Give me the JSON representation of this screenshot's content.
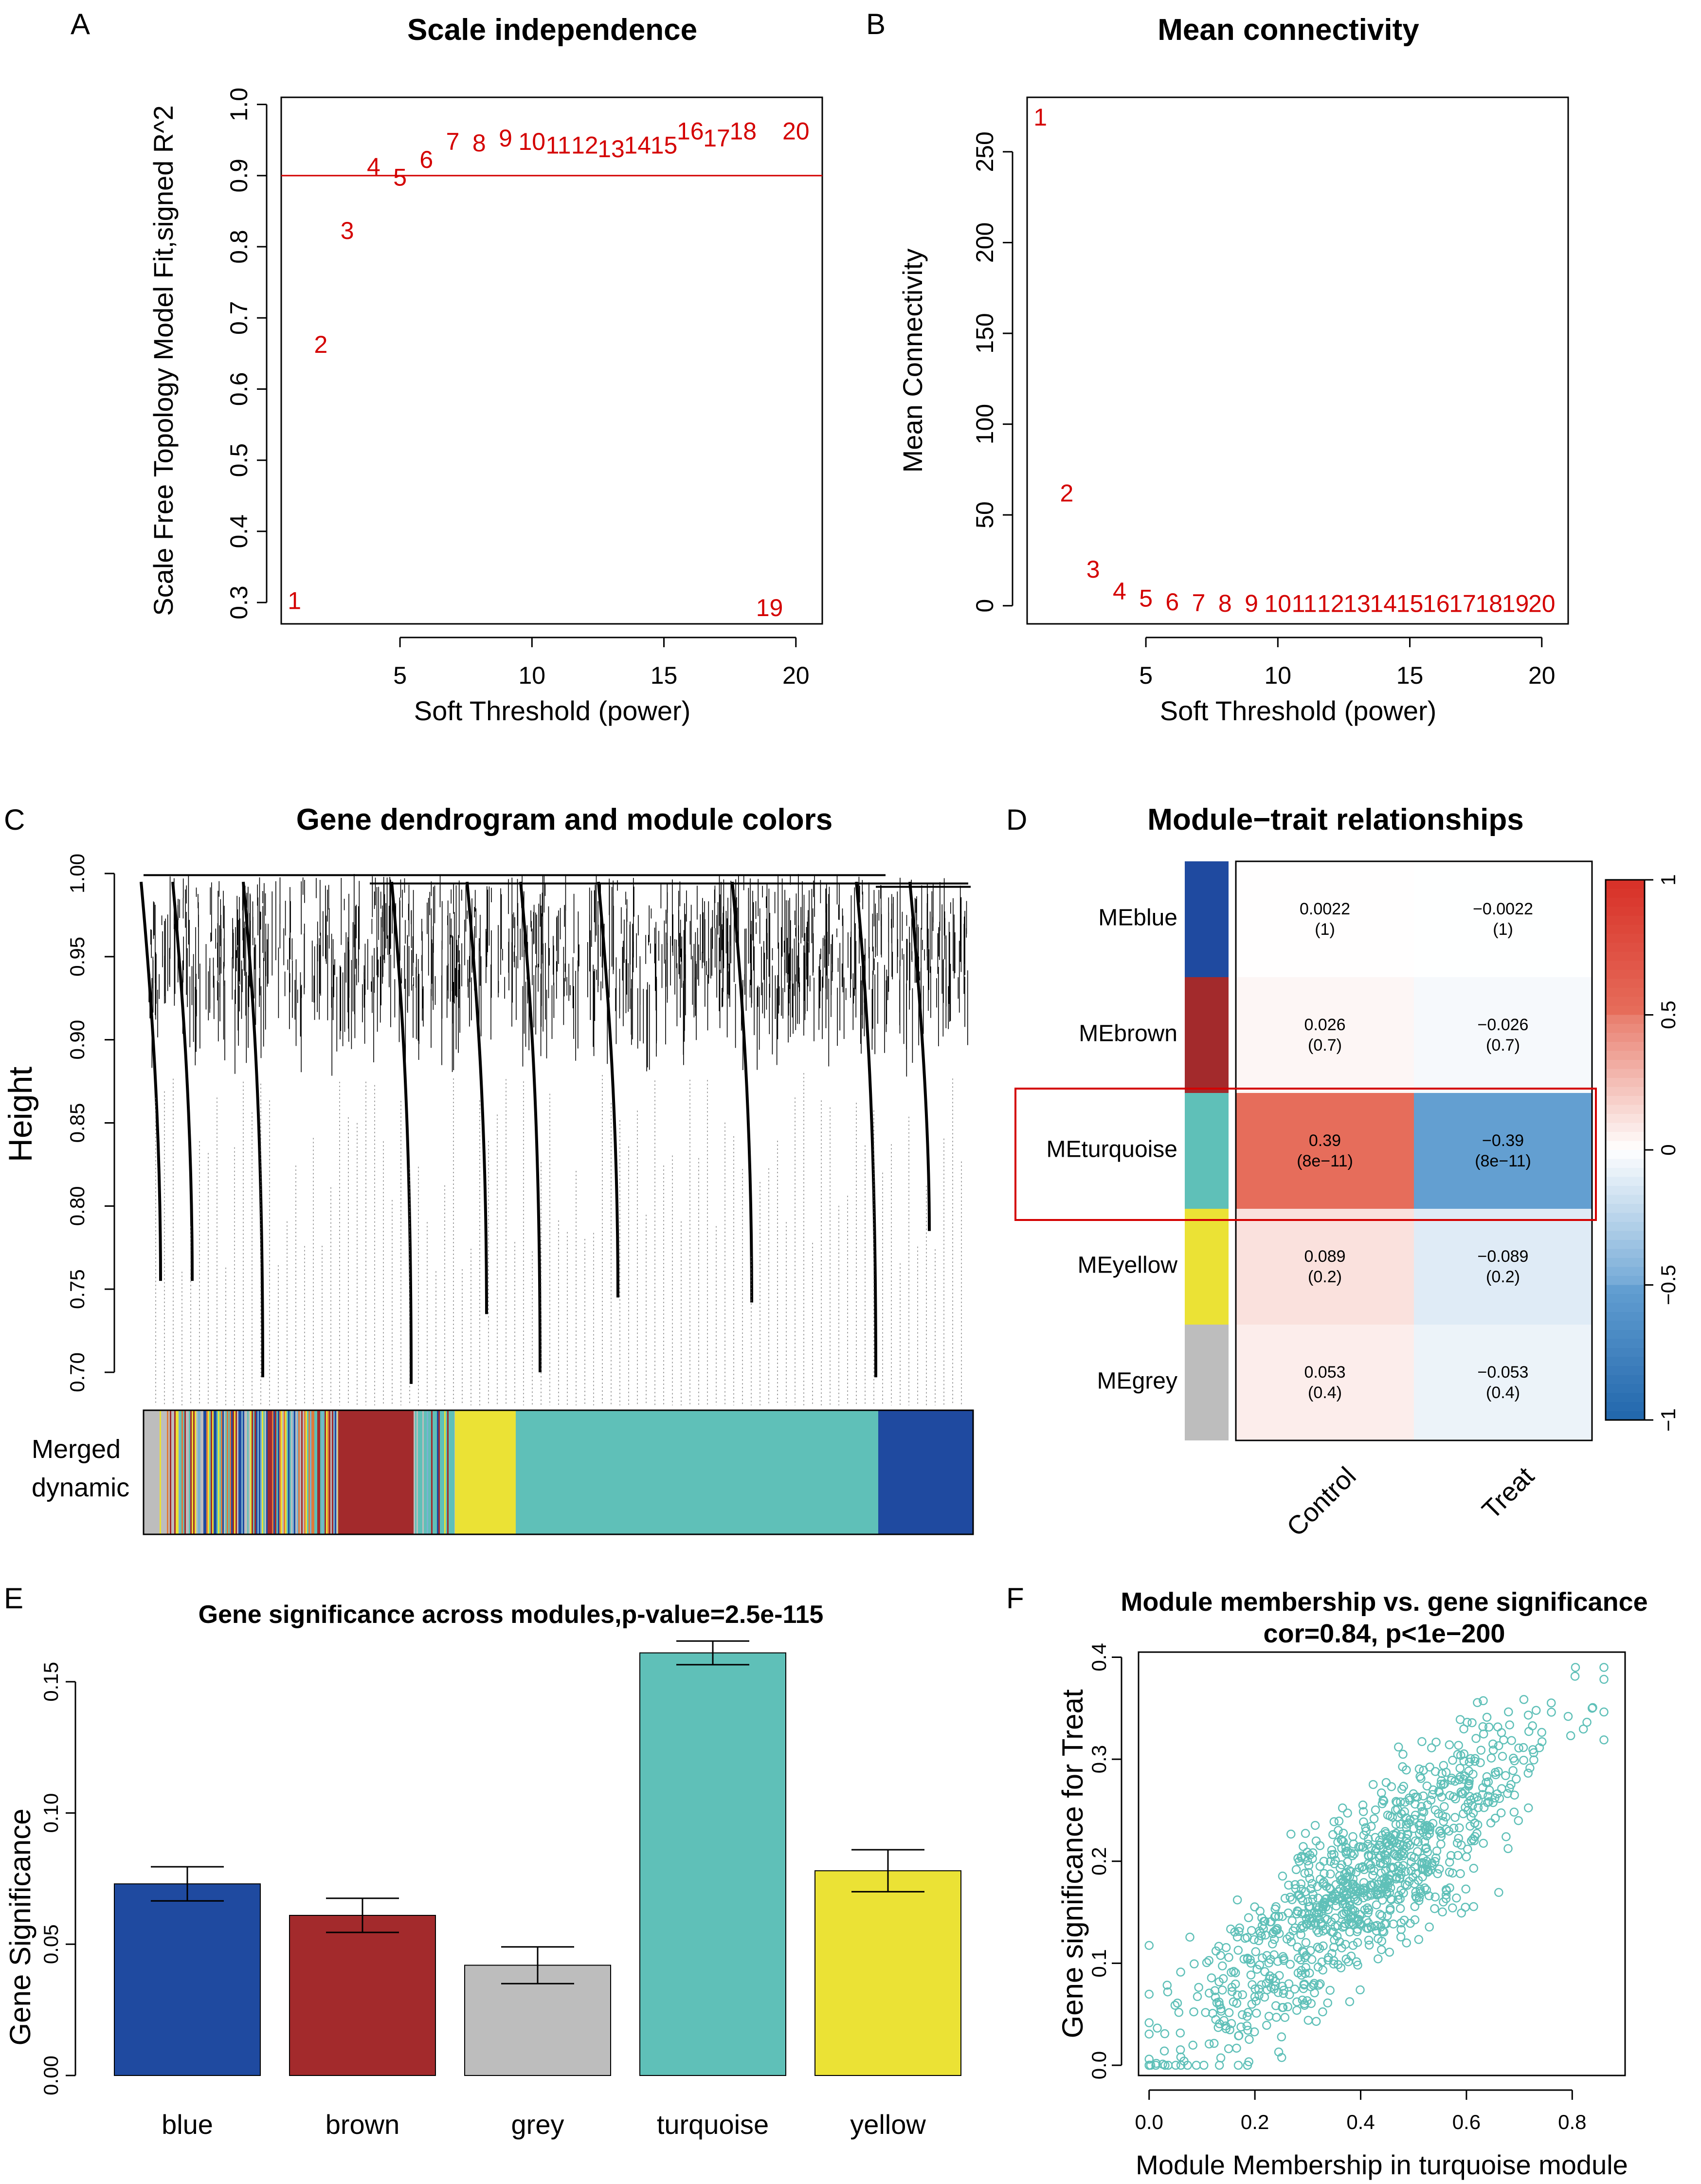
{
  "colors": {
    "red": "#d40000",
    "blue": "#1f4aa0",
    "brown": "#a32a2c",
    "grey": "#bdbdbd",
    "turquoise": "#5fc0b8",
    "yellow": "#ebe235"
  },
  "chart_data": [
    {
      "panel": "A",
      "type": "scatter",
      "title": "Scale independence",
      "xlabel": "Soft Threshold (power)",
      "ylabel": "Scale Free Topology Model Fit,signed R^2",
      "xlim": [
        0.5,
        21
      ],
      "ylim": [
        0.27,
        1.01
      ],
      "xticks": [
        "5",
        "10",
        "15",
        "20"
      ],
      "yticks": [
        "0.3",
        "0.4",
        "0.5",
        "0.6",
        "0.7",
        "0.8",
        "0.9",
        "1.0"
      ],
      "hline": 0.9,
      "points": [
        {
          "label": "1",
          "x": 1,
          "y": 0.3
        },
        {
          "label": "2",
          "x": 2,
          "y": 0.66
        },
        {
          "label": "3",
          "x": 3,
          "y": 0.82
        },
        {
          "label": "4",
          "x": 4,
          "y": 0.91
        },
        {
          "label": "5",
          "x": 5,
          "y": 0.895
        },
        {
          "label": "6",
          "x": 6,
          "y": 0.92
        },
        {
          "label": "7",
          "x": 7,
          "y": 0.945
        },
        {
          "label": "8",
          "x": 8,
          "y": 0.943
        },
        {
          "label": "9",
          "x": 9,
          "y": 0.95
        },
        {
          "label": "10",
          "x": 10,
          "y": 0.945
        },
        {
          "label": "11",
          "x": 11,
          "y": 0.94
        },
        {
          "label": "12",
          "x": 12,
          "y": 0.94
        },
        {
          "label": "13",
          "x": 13,
          "y": 0.935
        },
        {
          "label": "14",
          "x": 14,
          "y": 0.94
        },
        {
          "label": "15",
          "x": 15,
          "y": 0.94
        },
        {
          "label": "16",
          "x": 16,
          "y": 0.96
        },
        {
          "label": "17",
          "x": 17,
          "y": 0.95
        },
        {
          "label": "18",
          "x": 18,
          "y": 0.96
        },
        {
          "label": "19",
          "x": 19,
          "y": 0.29
        },
        {
          "label": "20",
          "x": 20,
          "y": 0.96
        }
      ]
    },
    {
      "panel": "B",
      "type": "scatter",
      "title": "Mean connectivity",
      "xlabel": "Soft Threshold (power)",
      "ylabel": "Mean Connectivity",
      "xlim": [
        0.5,
        21
      ],
      "ylim": [
        -10,
        280
      ],
      "xticks": [
        "5",
        "10",
        "15",
        "20"
      ],
      "yticks": [
        "0",
        "50",
        "100",
        "150",
        "200",
        "250"
      ],
      "points": [
        {
          "label": "1",
          "x": 1,
          "y": 268
        },
        {
          "label": "2",
          "x": 2,
          "y": 61
        },
        {
          "label": "3",
          "x": 3,
          "y": 19
        },
        {
          "label": "4",
          "x": 4,
          "y": 7
        },
        {
          "label": "5",
          "x": 5,
          "y": 3
        },
        {
          "label": "6",
          "x": 6,
          "y": 1
        },
        {
          "label": "7",
          "x": 7,
          "y": 0.5
        },
        {
          "label": "8",
          "x": 8,
          "y": 0.3
        },
        {
          "label": "9",
          "x": 9,
          "y": 0.2
        },
        {
          "label": "10",
          "x": 10,
          "y": 0.1
        },
        {
          "label": "11",
          "x": 11,
          "y": 0.1
        },
        {
          "label": "12",
          "x": 12,
          "y": 0.1
        },
        {
          "label": "13",
          "x": 13,
          "y": 0.1
        },
        {
          "label": "14",
          "x": 14,
          "y": 0.1
        },
        {
          "label": "15",
          "x": 15,
          "y": 0.1
        },
        {
          "label": "16",
          "x": 16,
          "y": 0.1
        },
        {
          "label": "17",
          "x": 17,
          "y": 0.1
        },
        {
          "label": "18",
          "x": 18,
          "y": 0.1
        },
        {
          "label": "19",
          "x": 19,
          "y": 0.1
        },
        {
          "label": "20",
          "x": 20,
          "y": 0.1
        }
      ]
    },
    {
      "panel": "C",
      "type": "dendrogram",
      "title": "Gene dendrogram and module colors",
      "ylabel": "Height",
      "ylim": [
        0.7,
        1.0
      ],
      "yticks": [
        "0.70",
        "0.75",
        "0.80",
        "0.85",
        "0.90",
        "0.95",
        "1.00"
      ],
      "color_bar_label": [
        "Merged",
        "dynamic"
      ],
      "modules_order": [
        "mixed",
        "brown",
        "turquoise",
        "yellow",
        "turquoise",
        "blue"
      ]
    },
    {
      "panel": "D",
      "type": "heatmap",
      "title": "Module−trait relationships",
      "columns": [
        "Control",
        "Treat"
      ],
      "rows": [
        {
          "name": "MEblue",
          "color": "blue",
          "values": [
            0.0022,
            -0.0022
          ],
          "labels": [
            "0.0022",
            "−0.0022"
          ],
          "pvals": [
            "(1)",
            "(1)"
          ]
        },
        {
          "name": "MEbrown",
          "color": "brown",
          "values": [
            0.026,
            -0.026
          ],
          "labels": [
            "0.026",
            "−0.026"
          ],
          "pvals": [
            "(0.7)",
            "(0.7)"
          ]
        },
        {
          "name": "MEturquoise",
          "color": "turquoise",
          "values": [
            0.39,
            -0.39
          ],
          "labels": [
            "0.39",
            "−0.39"
          ],
          "pvals": [
            "(8e−11)",
            "(8e−11)"
          ],
          "highlighted": true
        },
        {
          "name": "MEyellow",
          "color": "yellow",
          "values": [
            0.089,
            -0.089
          ],
          "labels": [
            "0.089",
            "−0.089"
          ],
          "pvals": [
            "(0.2)",
            "(0.2)"
          ]
        },
        {
          "name": "MEgrey",
          "color": "grey",
          "values": [
            0.053,
            -0.053
          ],
          "labels": [
            "0.053",
            "−0.053"
          ],
          "pvals": [
            "(0.4)",
            "(0.4)"
          ]
        }
      ],
      "colorbar_ticks": [
        "1",
        "0.5",
        "0",
        "−0.5",
        "−1"
      ],
      "colorbar_range": [
        -1,
        1
      ]
    },
    {
      "panel": "E",
      "type": "bar",
      "title": "Gene significance across modules,p-value=2.5e-115",
      "ylabel": "Gene Significance",
      "ylim": [
        0,
        0.165
      ],
      "yticks": [
        "0.00",
        "0.05",
        "0.10",
        "0.15"
      ],
      "categories": [
        "blue",
        "brown",
        "grey",
        "turquoise",
        "yellow"
      ],
      "values": [
        0.073,
        0.061,
        0.042,
        0.161,
        0.078
      ],
      "errors": [
        0.0065,
        0.0065,
        0.007,
        0.0045,
        0.008
      ]
    },
    {
      "panel": "F",
      "type": "scatter",
      "title": "Module membership vs. gene significance",
      "subtitle": "cor=0.84, p<1e−200",
      "xlabel": "Module Membership in turquoise module",
      "ylabel": "Gene significance for  Treat",
      "xlim": [
        -0.02,
        0.9
      ],
      "ylim": [
        -0.01,
        0.405
      ],
      "xticks": [
        "0.0",
        "0.2",
        "0.4",
        "0.6",
        "0.8"
      ],
      "yticks": [
        "0.0",
        "0.1",
        "0.2",
        "0.3",
        "0.4"
      ],
      "n_points": 1000,
      "point_color": "turquoise",
      "trend": {
        "slope": 0.43,
        "intercept": 0.005,
        "noise_sd": 0.04
      }
    }
  ]
}
